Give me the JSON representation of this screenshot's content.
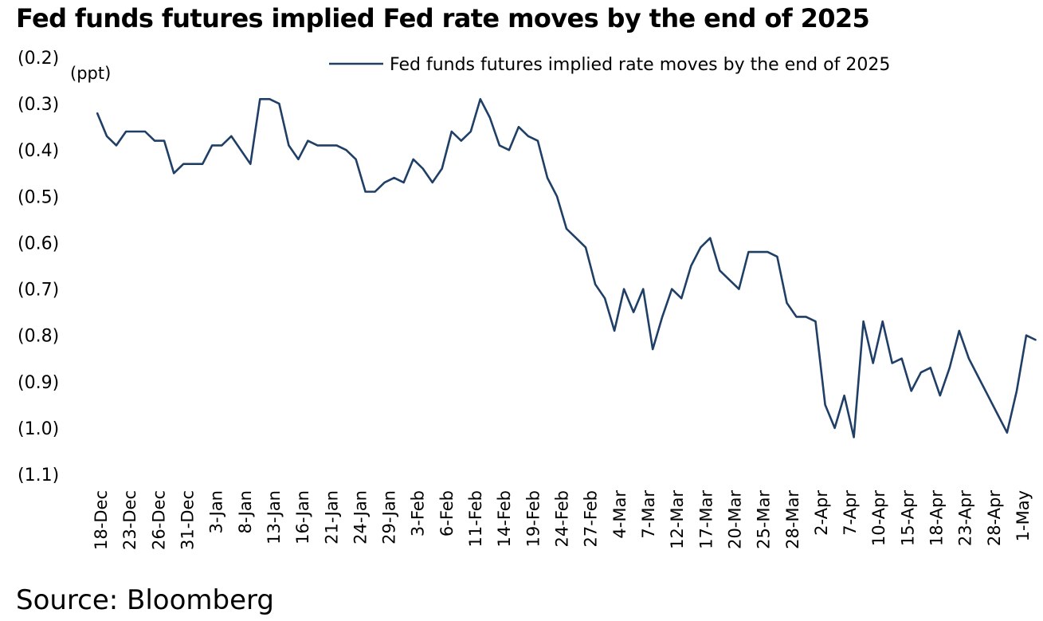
{
  "title": "Fed funds futures implied Fed rate moves by the end of 2025",
  "source": "Source: Bloomberg",
  "colors": {
    "series": "#1f3f66"
  },
  "chart_data": {
    "type": "line",
    "title": "Fed funds futures implied Fed rate moves by the end of 2025",
    "ylabel": "(ppt)",
    "ylim": [
      -1.1,
      -0.2
    ],
    "yticks": [
      -0.2,
      -0.3,
      -0.4,
      -0.5,
      -0.6,
      -0.7,
      -0.8,
      -0.9,
      -1.0,
      -1.1
    ],
    "ytick_labels": [
      "(0.2)",
      "(0.3)",
      "(0.4)",
      "(0.5)",
      "(0.6)",
      "(0.7)",
      "(0.8)",
      "(0.9)",
      "(1.0)",
      "(1.1)"
    ],
    "xtick_labels": [
      "18-Dec",
      "23-Dec",
      "26-Dec",
      "31-Dec",
      "3-Jan",
      "8-Jan",
      "13-Jan",
      "16-Jan",
      "21-Jan",
      "24-Jan",
      "29-Jan",
      "3-Feb",
      "6-Feb",
      "11-Feb",
      "14-Feb",
      "19-Feb",
      "24-Feb",
      "27-Feb",
      "4-Mar",
      "7-Mar",
      "12-Mar",
      "17-Mar",
      "20-Mar",
      "25-Mar",
      "28-Mar",
      "2-Apr",
      "7-Apr",
      "10-Apr",
      "15-Apr",
      "18-Apr",
      "23-Apr",
      "28-Apr",
      "1-May"
    ],
    "grid": false,
    "legend_position": "top-right",
    "series": [
      {
        "name": "Fed funds futures implied rate moves by the end of 2025",
        "values": [
          -0.32,
          -0.37,
          -0.39,
          -0.36,
          -0.36,
          -0.36,
          -0.38,
          -0.38,
          -0.45,
          -0.43,
          -0.43,
          -0.43,
          -0.39,
          -0.39,
          -0.37,
          -0.4,
          -0.43,
          -0.29,
          -0.29,
          -0.3,
          -0.39,
          -0.42,
          -0.38,
          -0.39,
          -0.39,
          -0.39,
          -0.4,
          -0.42,
          -0.49,
          -0.49,
          -0.47,
          -0.46,
          -0.47,
          -0.42,
          -0.44,
          -0.47,
          -0.44,
          -0.36,
          -0.38,
          -0.36,
          -0.29,
          -0.33,
          -0.39,
          -0.4,
          -0.35,
          -0.37,
          -0.38,
          -0.46,
          -0.5,
          -0.57,
          -0.59,
          -0.61,
          -0.69,
          -0.72,
          -0.79,
          -0.7,
          -0.75,
          -0.7,
          -0.83,
          -0.76,
          -0.7,
          -0.72,
          -0.65,
          -0.61,
          -0.59,
          -0.66,
          -0.68,
          -0.7,
          -0.62,
          -0.62,
          -0.62,
          -0.63,
          -0.73,
          -0.76,
          -0.76,
          -0.77,
          -0.95,
          -1.0,
          -0.93,
          -1.02,
          -0.77,
          -0.86,
          -0.77,
          -0.86,
          -0.85,
          -0.92,
          -0.88,
          -0.87,
          -0.93,
          -0.87,
          -0.79,
          -0.85,
          -0.89,
          -0.93,
          -0.97,
          -1.01,
          -0.92,
          -0.8,
          -0.81
        ]
      }
    ]
  }
}
